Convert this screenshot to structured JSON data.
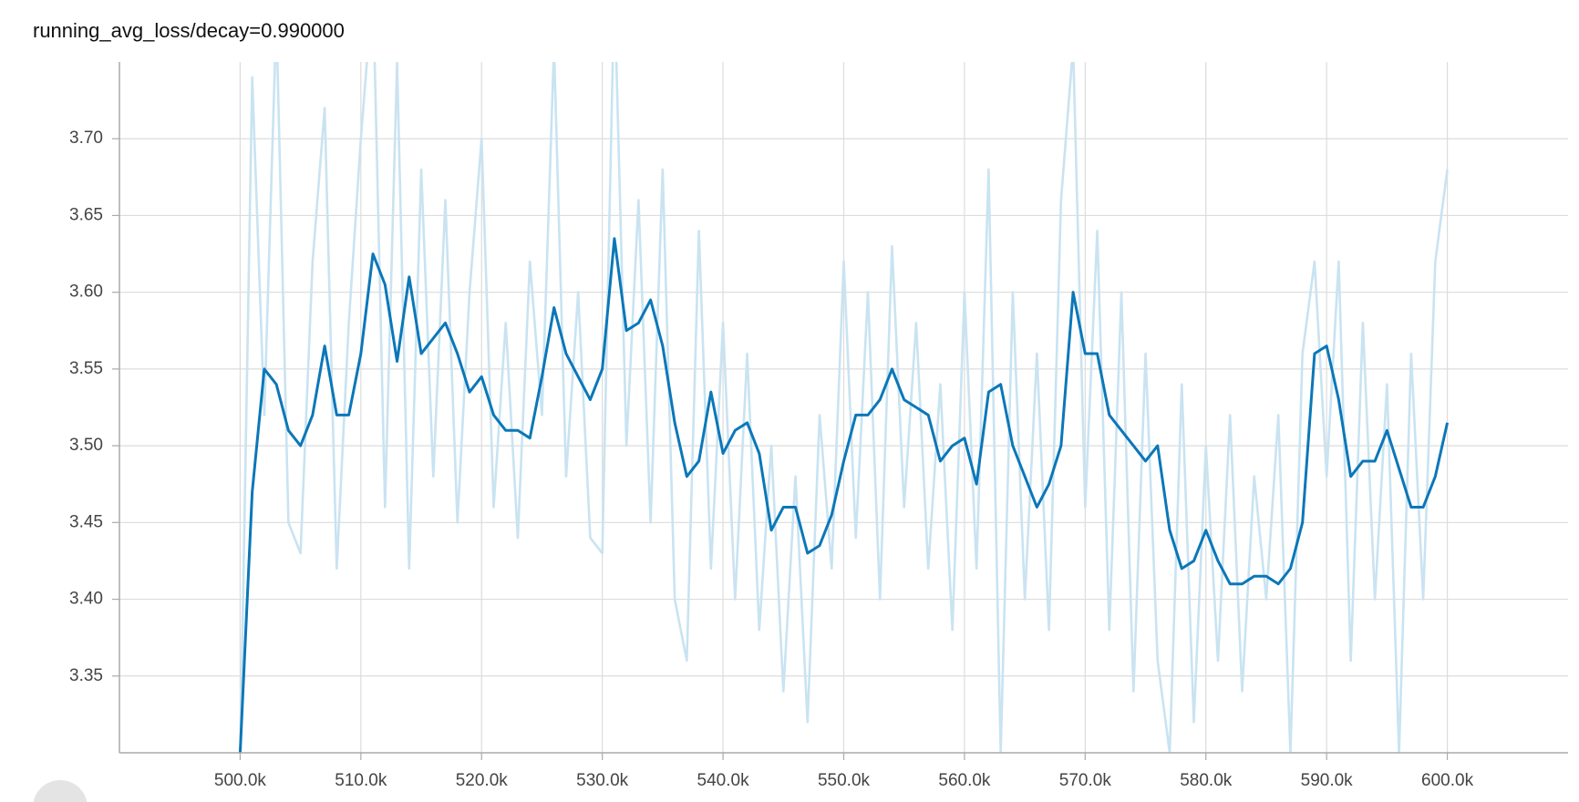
{
  "chart_data": {
    "type": "line",
    "title": "running_avg_loss/decay=0.990000",
    "x": [
      500000,
      501000,
      502000,
      503000,
      504000,
      505000,
      506000,
      507000,
      508000,
      509000,
      510000,
      511000,
      512000,
      513000,
      514000,
      515000,
      516000,
      517000,
      518000,
      519000,
      520000,
      521000,
      522000,
      523000,
      524000,
      525000,
      526000,
      527000,
      528000,
      529000,
      530000,
      531000,
      532000,
      533000,
      534000,
      535000,
      536000,
      537000,
      538000,
      539000,
      540000,
      541000,
      542000,
      543000,
      544000,
      545000,
      546000,
      547000,
      548000,
      549000,
      550000,
      551000,
      552000,
      553000,
      554000,
      555000,
      556000,
      557000,
      558000,
      559000,
      560000,
      561000,
      562000,
      563000,
      564000,
      565000,
      566000,
      567000,
      568000,
      569000,
      570000,
      571000,
      572000,
      573000,
      574000,
      575000,
      576000,
      577000,
      578000,
      579000,
      580000,
      581000,
      582000,
      583000,
      584000,
      585000,
      586000,
      587000,
      588000,
      589000,
      590000,
      591000,
      592000,
      593000,
      594000,
      595000,
      596000,
      597000,
      598000,
      599000,
      600000
    ],
    "series": [
      {
        "color": "#c9e3f1",
        "values": [
          3.29,
          3.74,
          3.52,
          3.78,
          3.45,
          3.43,
          3.62,
          3.72,
          3.42,
          3.58,
          3.7,
          3.8,
          3.46,
          3.75,
          3.42,
          3.68,
          3.48,
          3.66,
          3.45,
          3.6,
          3.7,
          3.46,
          3.58,
          3.44,
          3.62,
          3.52,
          3.76,
          3.48,
          3.6,
          3.44,
          3.43,
          3.8,
          3.5,
          3.66,
          3.45,
          3.68,
          3.4,
          3.36,
          3.64,
          3.42,
          3.58,
          3.4,
          3.56,
          3.38,
          3.5,
          3.34,
          3.48,
          3.32,
          3.52,
          3.42,
          3.62,
          3.44,
          3.6,
          3.4,
          3.63,
          3.46,
          3.58,
          3.42,
          3.54,
          3.38,
          3.6,
          3.42,
          3.68,
          3.3,
          3.6,
          3.4,
          3.56,
          3.38,
          3.66,
          3.76,
          3.46,
          3.64,
          3.38,
          3.6,
          3.34,
          3.56,
          3.36,
          3.3,
          3.54,
          3.32,
          3.5,
          3.36,
          3.52,
          3.34,
          3.48,
          3.4,
          3.52,
          3.3,
          3.56,
          3.62,
          3.48,
          3.62,
          3.36,
          3.58,
          3.4,
          3.54,
          3.3,
          3.56,
          3.4,
          3.62,
          3.68
        ]
      },
      {
        "color": "#0b77b8",
        "values": [
          3.3,
          3.47,
          3.55,
          3.54,
          3.51,
          3.5,
          3.52,
          3.565,
          3.52,
          3.52,
          3.56,
          3.625,
          3.605,
          3.555,
          3.61,
          3.56,
          3.57,
          3.58,
          3.56,
          3.535,
          3.545,
          3.52,
          3.51,
          3.51,
          3.505,
          3.545,
          3.59,
          3.56,
          3.545,
          3.53,
          3.55,
          3.635,
          3.575,
          3.58,
          3.595,
          3.565,
          3.515,
          3.48,
          3.49,
          3.535,
          3.495,
          3.51,
          3.515,
          3.495,
          3.445,
          3.46,
          3.46,
          3.43,
          3.435,
          3.455,
          3.49,
          3.52,
          3.52,
          3.53,
          3.55,
          3.53,
          3.525,
          3.52,
          3.49,
          3.5,
          3.505,
          3.475,
          3.535,
          3.54,
          3.5,
          3.48,
          3.46,
          3.475,
          3.5,
          3.6,
          3.56,
          3.56,
          3.52,
          3.51,
          3.5,
          3.49,
          3.5,
          3.445,
          3.42,
          3.425,
          3.445,
          3.425,
          3.41,
          3.41,
          3.415,
          3.415,
          3.41,
          3.42,
          3.45,
          3.56,
          3.565,
          3.53,
          3.48,
          3.49,
          3.49,
          3.51,
          3.485,
          3.46,
          3.46,
          3.48,
          3.515
        ]
      }
    ],
    "xlim": [
      490000,
      610000
    ],
    "ylim": [
      3.3,
      3.75
    ],
    "xticks": [
      {
        "value": 500000,
        "label": "500.0k"
      },
      {
        "value": 510000,
        "label": "510.0k"
      },
      {
        "value": 520000,
        "label": "520.0k"
      },
      {
        "value": 530000,
        "label": "530.0k"
      },
      {
        "value": 540000,
        "label": "540.0k"
      },
      {
        "value": 550000,
        "label": "550.0k"
      },
      {
        "value": 560000,
        "label": "560.0k"
      },
      {
        "value": 570000,
        "label": "570.0k"
      },
      {
        "value": 580000,
        "label": "580.0k"
      },
      {
        "value": 590000,
        "label": "590.0k"
      },
      {
        "value": 600000,
        "label": "600.0k"
      }
    ],
    "yticks": [
      3.35,
      {
        "value": 3.4,
        "label": "3.40"
      },
      3.45,
      {
        "value": 3.5,
        "label": "3.50"
      },
      3.55,
      {
        "value": 3.6,
        "label": "3.60"
      },
      3.65,
      {
        "value": 3.7,
        "label": "3.70"
      }
    ],
    "grid": true
  }
}
